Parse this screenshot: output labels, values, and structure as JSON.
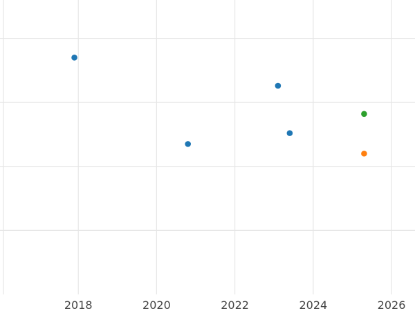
{
  "chart_data": {
    "type": "scatter",
    "title": "",
    "xlabel": "",
    "ylabel": "",
    "x_ticks": [
      2018,
      2020,
      2022,
      2024,
      2026
    ],
    "x_tick_labels": [
      "2018",
      "2020",
      "2022",
      "2024",
      "2026"
    ],
    "xlim": [
      2016.0,
      2026.6
    ],
    "ylim": [
      0,
      460
    ],
    "y_ticks": [
      100,
      200,
      300,
      400
    ],
    "y_tick_labels_visible": false,
    "grid": true,
    "legend": "none",
    "series": [
      {
        "color": "#1f77b4",
        "points": [
          {
            "x": 2017.9,
            "y": 370
          },
          {
            "x": 2020.8,
            "y": 235
          },
          {
            "x": 2023.1,
            "y": 326
          },
          {
            "x": 2023.4,
            "y": 252
          }
        ]
      },
      {
        "color": "#2ca02c",
        "points": [
          {
            "x": 2025.3,
            "y": 282
          }
        ]
      },
      {
        "color": "#ff7f0e",
        "points": [
          {
            "x": 2025.3,
            "y": 220
          }
        ]
      }
    ]
  }
}
